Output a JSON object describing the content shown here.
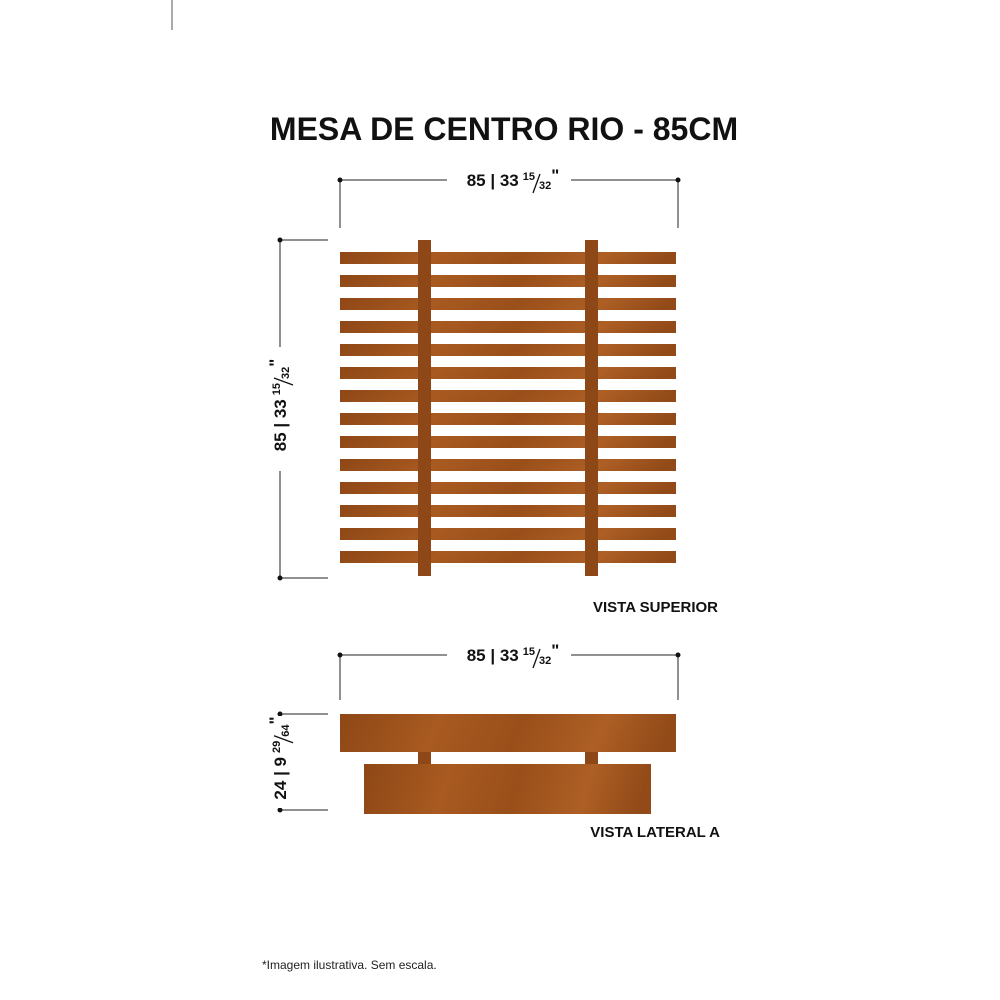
{
  "title": "MESA DE CENTRO RIO - 85CM",
  "top_view": {
    "label": "VISTA SUPERIOR",
    "width_dim": {
      "value": "85 | 33",
      "num": "15",
      "den": "32",
      "unit": "\""
    },
    "depth_dim": {
      "value": "85 | 33",
      "num": "15",
      "den": "32",
      "unit": "\""
    }
  },
  "side_view": {
    "label": "VISTA LATERAL A",
    "width_dim": {
      "value": "85 | 33",
      "num": "15",
      "den": "32",
      "unit": "\""
    },
    "height_dim": {
      "value": "24 | 9",
      "num": "29",
      "den": "64",
      "unit": "\""
    }
  },
  "footnote": "*Imagem ilustrativa. Sem escala."
}
